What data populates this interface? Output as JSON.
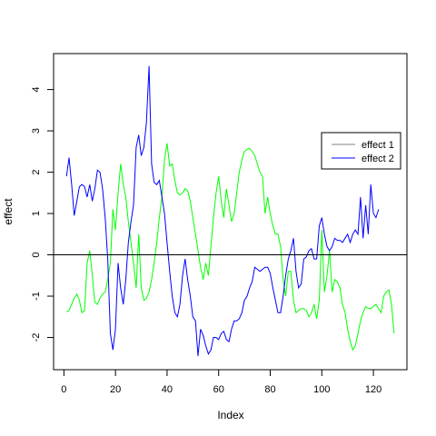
{
  "chart_data": {
    "type": "line",
    "title": "",
    "xlabel": "Index",
    "ylabel": "effect",
    "xlim": [
      1,
      128
    ],
    "ylim": [
      -2.5,
      4.6
    ],
    "x_ticks": [
      0,
      20,
      40,
      60,
      80,
      100,
      120
    ],
    "y_ticks": [
      -2,
      -1,
      0,
      1,
      2,
      3,
      4
    ],
    "x_tick_labels": [
      "0",
      "20",
      "40",
      "60",
      "80",
      "100",
      "120"
    ],
    "y_tick_labels": [
      "-2",
      "-1",
      "0",
      "1",
      "2",
      "3",
      "4"
    ],
    "reference_line": {
      "y": 0,
      "color": "#000000"
    },
    "grid": false,
    "legend": {
      "placement": "right",
      "entries": [
        {
          "label": "effect 1",
          "color": "#808080"
        },
        {
          "label": "effect 2",
          "color": "#0000ff"
        }
      ]
    },
    "series": [
      {
        "color": "#00ff00",
        "points": [
          [
            1,
            -1.38
          ],
          [
            2,
            -1.35
          ],
          [
            3,
            -1.2
          ],
          [
            4,
            -1.05
          ],
          [
            5,
            -0.95
          ],
          [
            6,
            -1.1
          ],
          [
            7,
            -1.4
          ],
          [
            8,
            -1.35
          ],
          [
            9,
            -0.2
          ],
          [
            10,
            0.1
          ],
          [
            11,
            -0.5
          ],
          [
            12,
            -1.15
          ],
          [
            13,
            -1.2
          ],
          [
            14,
            -1.05
          ],
          [
            15,
            -0.95
          ],
          [
            16,
            -0.9
          ],
          [
            17,
            -0.6
          ],
          [
            18,
            -0.2
          ],
          [
            19,
            1.1
          ],
          [
            20,
            0.6
          ],
          [
            21,
            1.5
          ],
          [
            22,
            2.2
          ],
          [
            23,
            1.7
          ],
          [
            24,
            1.4
          ],
          [
            25,
            0.8
          ],
          [
            26,
            0.3
          ],
          [
            27,
            -0.2
          ],
          [
            28,
            -0.8
          ],
          [
            29,
            0.5
          ],
          [
            30,
            -0.8
          ],
          [
            31,
            -1.1
          ],
          [
            32,
            -1.05
          ],
          [
            33,
            -0.9
          ],
          [
            34,
            -0.6
          ],
          [
            35,
            -0.2
          ],
          [
            36,
            0.3
          ],
          [
            37,
            0.9
          ],
          [
            38,
            1.4
          ],
          [
            39,
            2.3
          ],
          [
            40,
            2.7
          ],
          [
            41,
            2.15
          ],
          [
            42,
            2.2
          ],
          [
            43,
            1.8
          ],
          [
            44,
            1.5
          ],
          [
            45,
            1.45
          ],
          [
            46,
            1.5
          ],
          [
            47,
            1.6
          ],
          [
            48,
            1.55
          ],
          [
            49,
            1.3
          ],
          [
            50,
            0.9
          ],
          [
            51,
            0.5
          ],
          [
            52,
            0.1
          ],
          [
            53,
            -0.3
          ],
          [
            54,
            -0.6
          ],
          [
            55,
            -0.2
          ],
          [
            56,
            -0.5
          ],
          [
            57,
            0.2
          ],
          [
            58,
            0.9
          ],
          [
            59,
            1.5
          ],
          [
            60,
            1.9
          ],
          [
            61,
            1.3
          ],
          [
            62,
            0.9
          ],
          [
            63,
            1.6
          ],
          [
            64,
            1.2
          ],
          [
            65,
            0.8
          ],
          [
            66,
            1.0
          ],
          [
            67,
            1.5
          ],
          [
            68,
            2.0
          ],
          [
            69,
            2.3
          ],
          [
            70,
            2.5
          ],
          [
            71,
            2.55
          ],
          [
            72,
            2.58
          ],
          [
            73,
            2.5
          ],
          [
            74,
            2.4
          ],
          [
            75,
            2.2
          ],
          [
            76,
            2.0
          ],
          [
            77,
            1.9
          ],
          [
            78,
            1.0
          ],
          [
            79,
            1.4
          ],
          [
            80,
            1.0
          ],
          [
            81,
            0.7
          ],
          [
            82,
            0.5
          ],
          [
            83,
            0.5
          ],
          [
            84,
            0.2
          ],
          [
            85,
            -0.6
          ],
          [
            86,
            -1.0
          ],
          [
            87,
            -0.4
          ],
          [
            88,
            -0.4
          ],
          [
            89,
            -1.1
          ],
          [
            90,
            -1.4
          ],
          [
            91,
            -1.35
          ],
          [
            92,
            -1.3
          ],
          [
            93,
            -1.3
          ],
          [
            94,
            -1.35
          ],
          [
            95,
            -1.5
          ],
          [
            96,
            -1.4
          ],
          [
            97,
            -1.2
          ],
          [
            98,
            -1.55
          ],
          [
            99,
            -1.1
          ],
          [
            100,
            0.6
          ],
          [
            101,
            -0.9
          ],
          [
            102,
            -0.5
          ],
          [
            103,
            0.1
          ],
          [
            104,
            -0.9
          ],
          [
            105,
            -0.6
          ],
          [
            106,
            -0.65
          ],
          [
            107,
            -0.8
          ],
          [
            108,
            -1.2
          ],
          [
            109,
            -1.4
          ],
          [
            110,
            -1.8
          ],
          [
            111,
            -2.1
          ],
          [
            112,
            -2.3
          ],
          [
            113,
            -2.2
          ],
          [
            114,
            -1.9
          ],
          [
            115,
            -1.6
          ],
          [
            116,
            -1.4
          ],
          [
            117,
            -1.25
          ],
          [
            118,
            -1.3
          ],
          [
            119,
            -1.3
          ],
          [
            120,
            -1.25
          ],
          [
            121,
            -1.2
          ],
          [
            122,
            -1.3
          ],
          [
            123,
            -1.4
          ],
          [
            124,
            -1.0
          ],
          [
            125,
            -0.9
          ],
          [
            126,
            -0.85
          ],
          [
            127,
            -1.2
          ],
          [
            128,
            -1.9
          ]
        ]
      },
      {
        "color": "#0000ff",
        "points": [
          [
            1,
            1.9
          ],
          [
            2,
            2.35
          ],
          [
            3,
            1.7
          ],
          [
            4,
            0.95
          ],
          [
            5,
            1.3
          ],
          [
            6,
            1.65
          ],
          [
            7,
            1.7
          ],
          [
            8,
            1.65
          ],
          [
            9,
            1.4
          ],
          [
            10,
            1.7
          ],
          [
            11,
            1.3
          ],
          [
            12,
            1.6
          ],
          [
            13,
            2.05
          ],
          [
            14,
            2.0
          ],
          [
            15,
            1.6
          ],
          [
            16,
            0.9
          ],
          [
            17,
            -0.1
          ],
          [
            18,
            -1.9
          ],
          [
            19,
            -2.3
          ],
          [
            20,
            -1.8
          ],
          [
            21,
            -0.2
          ],
          [
            22,
            -0.8
          ],
          [
            23,
            -1.2
          ],
          [
            24,
            -0.6
          ],
          [
            25,
            0.3
          ],
          [
            26,
            0.8
          ],
          [
            27,
            1.2
          ],
          [
            28,
            2.6
          ],
          [
            29,
            2.9
          ],
          [
            30,
            2.4
          ],
          [
            31,
            2.6
          ],
          [
            32,
            3.2
          ],
          [
            33,
            4.57
          ],
          [
            34,
            2.2
          ],
          [
            35,
            1.75
          ],
          [
            36,
            1.7
          ],
          [
            37,
            1.8
          ],
          [
            38,
            1.4
          ],
          [
            39,
            1.0
          ],
          [
            40,
            0.3
          ],
          [
            41,
            -0.4
          ],
          [
            42,
            -1.0
          ],
          [
            43,
            -1.4
          ],
          [
            44,
            -1.5
          ],
          [
            45,
            -1.2
          ],
          [
            46,
            -0.5
          ],
          [
            47,
            -0.1
          ],
          [
            48,
            -0.6
          ],
          [
            49,
            -1.0
          ],
          [
            50,
            -1.5
          ],
          [
            51,
            -1.6
          ],
          [
            52,
            -2.45
          ],
          [
            53,
            -1.8
          ],
          [
            54,
            -1.95
          ],
          [
            55,
            -2.2
          ],
          [
            56,
            -2.4
          ],
          [
            57,
            -2.3
          ],
          [
            58,
            -2.0
          ],
          [
            59,
            -2.0
          ],
          [
            60,
            -2.05
          ],
          [
            61,
            -1.9
          ],
          [
            62,
            -1.85
          ],
          [
            63,
            -2.05
          ],
          [
            64,
            -2.1
          ],
          [
            65,
            -1.8
          ],
          [
            66,
            -1.6
          ],
          [
            67,
            -1.6
          ],
          [
            68,
            -1.55
          ],
          [
            69,
            -1.4
          ],
          [
            70,
            -1.1
          ],
          [
            71,
            -1.0
          ],
          [
            72,
            -0.8
          ],
          [
            73,
            -0.65
          ],
          [
            74,
            -0.3
          ],
          [
            75,
            -0.35
          ],
          [
            76,
            -0.4
          ],
          [
            77,
            -0.35
          ],
          [
            78,
            -0.3
          ],
          [
            79,
            -0.3
          ],
          [
            80,
            -0.45
          ],
          [
            81,
            -0.8
          ],
          [
            82,
            -1.1
          ],
          [
            83,
            -1.4
          ],
          [
            84,
            -1.4
          ],
          [
            85,
            -1.0
          ],
          [
            86,
            -0.5
          ],
          [
            87,
            -0.1
          ],
          [
            88,
            0.1
          ],
          [
            89,
            0.4
          ],
          [
            90,
            -0.4
          ],
          [
            91,
            -0.8
          ],
          [
            92,
            -0.7
          ],
          [
            93,
            -0.1
          ],
          [
            94,
            -0.05
          ],
          [
            95,
            0.1
          ],
          [
            96,
            0.15
          ],
          [
            97,
            -0.1
          ],
          [
            98,
            -0.1
          ],
          [
            99,
            0.7
          ],
          [
            100,
            0.9
          ],
          [
            101,
            0.5
          ],
          [
            102,
            0.2
          ],
          [
            103,
            0.1
          ],
          [
            104,
            0.2
          ],
          [
            105,
            0.4
          ],
          [
            106,
            0.35
          ],
          [
            107,
            0.35
          ],
          [
            108,
            0.3
          ],
          [
            109,
            0.4
          ],
          [
            110,
            0.5
          ],
          [
            111,
            0.3
          ],
          [
            112,
            0.5
          ],
          [
            113,
            0.6
          ],
          [
            114,
            0.5
          ],
          [
            115,
            1.4
          ],
          [
            116,
            0.4
          ],
          [
            117,
            1.2
          ],
          [
            118,
            0.5
          ],
          [
            119,
            1.7
          ],
          [
            120,
            1.0
          ],
          [
            121,
            0.9
          ],
          [
            122,
            1.1
          ]
        ]
      }
    ]
  }
}
